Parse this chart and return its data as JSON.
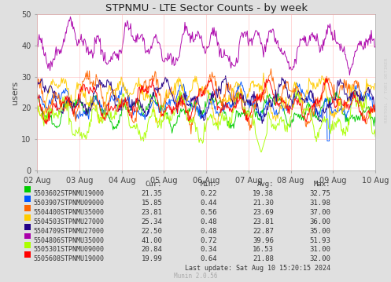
{
  "title": "STPNMU - LTE Sector Counts - by week",
  "ylabel": "users",
  "background_color": "#e0e0e0",
  "plot_bg_color": "#ffffff",
  "grid_color": "#ffaaaa",
  "x_ticks": [
    0,
    1,
    2,
    3,
    4,
    5,
    6,
    7,
    8
  ],
  "x_tick_labels": [
    "02 Aug",
    "03 Aug",
    "04 Aug",
    "05 Aug",
    "06 Aug",
    "07 Aug",
    "08 Aug",
    "09 Aug",
    "10 Aug"
  ],
  "ylim": [
    0,
    50
  ],
  "yticks": [
    0,
    10,
    20,
    30,
    40,
    50
  ],
  "series": [
    {
      "label": "5503602STPNMU19000",
      "color": "#00cc00",
      "cur": 21.35,
      "min": 0.22,
      "avg": 19.38,
      "max": 32.75,
      "base": 19.38,
      "amp": 6,
      "seed": 101
    },
    {
      "label": "5503907STPNMU09000",
      "color": "#0055ff",
      "cur": 15.85,
      "min": 0.44,
      "avg": 21.3,
      "max": 31.98,
      "base": 21.3,
      "amp": 6,
      "seed": 202
    },
    {
      "label": "5504400STPNMU35000",
      "color": "#ff6600",
      "cur": 23.81,
      "min": 0.56,
      "avg": 23.69,
      "max": 37.0,
      "base": 23.69,
      "amp": 9,
      "seed": 303
    },
    {
      "label": "5504503STPNMU27000",
      "color": "#ffcc00",
      "cur": 25.34,
      "min": 0.48,
      "avg": 23.81,
      "max": 36.0,
      "base": 23.81,
      "amp": 8,
      "seed": 404
    },
    {
      "label": "5504709STPNMU27000",
      "color": "#220088",
      "cur": 22.5,
      "min": 0.48,
      "avg": 22.87,
      "max": 35.0,
      "base": 22.87,
      "amp": 7,
      "seed": 505
    },
    {
      "label": "5504806STPNMU35000",
      "color": "#aa00aa",
      "cur": 41.0,
      "min": 0.72,
      "avg": 39.96,
      "max": 51.93,
      "base": 39.96,
      "amp": 8,
      "seed": 606
    },
    {
      "label": "5505301STPNMU09000",
      "color": "#aaff00",
      "cur": 20.84,
      "min": 0.34,
      "avg": 16.53,
      "max": 31.0,
      "base": 16.53,
      "amp": 8,
      "seed": 707
    },
    {
      "label": "5505608STPNMU19000",
      "color": "#ff0000",
      "cur": 19.99,
      "min": 0.64,
      "avg": 21.88,
      "max": 32.0,
      "base": 21.88,
      "amp": 7,
      "seed": 808
    }
  ],
  "watermark": "RRDTOOL / TOBI OETIKER",
  "munin_text": "Munin 2.0.56",
  "last_update": "Last update: Sat Aug 10 15:20:15 2024",
  "n_points": 500,
  "col_headers": [
    "Cur:",
    "Min:",
    "Avg:",
    "Max:"
  ]
}
